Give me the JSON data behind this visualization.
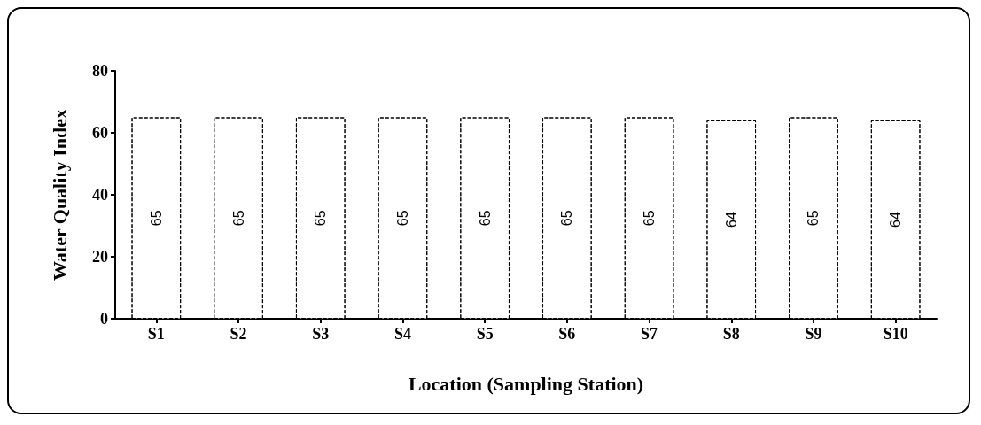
{
  "chart_data": {
    "type": "bar",
    "xlabel": "Location (Sampling Station)",
    "ylabel": "Water Quality Index",
    "categories": [
      "S1",
      "S2",
      "S3",
      "S4",
      "S5",
      "S6",
      "S7",
      "S8",
      "S9",
      "S10"
    ],
    "values": [
      65,
      65,
      65,
      65,
      65,
      65,
      65,
      64,
      65,
      64
    ],
    "color": "#ffffff",
    "ylim": [
      0,
      80
    ],
    "yticks": [
      0,
      20,
      40,
      60,
      80
    ],
    "grid": false,
    "data_labels": true
  }
}
